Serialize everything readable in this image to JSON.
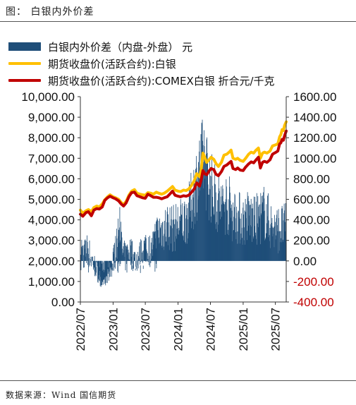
{
  "figure_title": "图： 白银内外价差",
  "source": "数据来源：Wind 国信期货",
  "colors": {
    "spread": "#1f4e79",
    "shfe_close": "#ffc000",
    "comex_close": "#c00000",
    "left_axis_text": "#111111",
    "right_axis_text": "#c00000"
  },
  "chart_data": {
    "type": "bar+line",
    "legend_position": "top-left",
    "grid": false,
    "series": [
      {
        "name": "白银内外价差（内盘-外盘） 元",
        "type": "bar",
        "axis": "left",
        "ylim": [
          0,
          10000
        ],
        "keypoints": [
          [
            "2022-07-01",
            3300
          ],
          [
            "2022-07-20",
            2800
          ],
          [
            "2022-08-10",
            3100
          ],
          [
            "2022-09-01",
            2500
          ],
          [
            "2022-09-25",
            2000
          ],
          [
            "2022-10-15",
            1500
          ],
          [
            "2022-11-05",
            1000
          ],
          [
            "2022-11-25",
            1300
          ],
          [
            "2022-12-10",
            1800
          ],
          [
            "2023-01-01",
            2500
          ],
          [
            "2023-01-20",
            3300
          ],
          [
            "2023-02-05",
            4300
          ],
          [
            "2023-02-20",
            3000
          ],
          [
            "2023-03-10",
            2600
          ],
          [
            "2023-04-01",
            3100
          ],
          [
            "2023-05-01",
            2500
          ],
          [
            "2023-06-01",
            2800
          ],
          [
            "2023-07-01",
            3300
          ],
          [
            "2023-08-01",
            3000
          ],
          [
            "2023-09-01",
            4000
          ],
          [
            "2023-10-01",
            4300
          ],
          [
            "2023-11-01",
            4500
          ],
          [
            "2023-12-01",
            4300
          ],
          [
            "2024-01-01",
            4600
          ],
          [
            "2024-02-01",
            4800
          ],
          [
            "2024-03-01",
            5300
          ],
          [
            "2024-04-01",
            6600
          ],
          [
            "2024-04-20",
            7400
          ],
          [
            "2024-05-10",
            8000
          ],
          [
            "2024-05-25",
            8700
          ],
          [
            "2024-06-10",
            7600
          ],
          [
            "2024-07-01",
            6800
          ],
          [
            "2024-08-01",
            6100
          ],
          [
            "2024-09-01",
            5600
          ],
          [
            "2024-10-01",
            5900
          ],
          [
            "2024-11-01",
            5300
          ],
          [
            "2024-12-01",
            5000
          ],
          [
            "2025-01-01",
            4800
          ],
          [
            "2025-02-01",
            5100
          ],
          [
            "2025-03-01",
            4700
          ],
          [
            "2025-04-01",
            5000
          ],
          [
            "2025-05-01",
            5300
          ],
          [
            "2025-06-01",
            4600
          ],
          [
            "2025-07-01",
            4200
          ],
          [
            "2025-07-31",
            4400
          ]
        ]
      },
      {
        "name": "期货收盘价(活跃合约):白银",
        "type": "line",
        "axis": "right",
        "ylim": [
          -400,
          1600
        ],
        "points": [
          [
            "2022-07-01",
            495
          ],
          [
            "2022-07-15",
            465
          ],
          [
            "2022-08-01",
            488
          ],
          [
            "2022-08-15",
            500
          ],
          [
            "2022-09-01",
            480
          ],
          [
            "2022-09-15",
            520
          ],
          [
            "2022-10-01",
            535
          ],
          [
            "2022-10-15",
            525
          ],
          [
            "2022-11-01",
            555
          ],
          [
            "2022-11-15",
            595
          ],
          [
            "2022-12-01",
            625
          ],
          [
            "2022-12-15",
            645
          ],
          [
            "2023-01-01",
            625
          ],
          [
            "2023-01-15",
            615
          ],
          [
            "2023-02-01",
            600
          ],
          [
            "2023-02-15",
            570
          ],
          [
            "2023-03-01",
            550
          ],
          [
            "2023-03-15",
            580
          ],
          [
            "2023-04-01",
            645
          ],
          [
            "2023-04-15",
            680
          ],
          [
            "2023-05-01",
            695
          ],
          [
            "2023-05-15",
            660
          ],
          [
            "2023-06-01",
            650
          ],
          [
            "2023-06-15",
            645
          ],
          [
            "2023-07-01",
            640
          ],
          [
            "2023-07-15",
            665
          ],
          [
            "2023-08-01",
            660
          ],
          [
            "2023-08-15",
            650
          ],
          [
            "2023-09-01",
            670
          ],
          [
            "2023-09-15",
            660
          ],
          [
            "2023-10-01",
            650
          ],
          [
            "2023-10-15",
            660
          ],
          [
            "2023-11-01",
            680
          ],
          [
            "2023-11-15",
            700
          ],
          [
            "2023-12-01",
            725
          ],
          [
            "2023-12-15",
            690
          ],
          [
            "2024-01-01",
            680
          ],
          [
            "2024-01-15",
            675
          ],
          [
            "2024-02-01",
            690
          ],
          [
            "2024-02-15",
            685
          ],
          [
            "2024-03-01",
            700
          ],
          [
            "2024-03-15",
            730
          ],
          [
            "2024-04-01",
            780
          ],
          [
            "2024-04-15",
            850
          ],
          [
            "2024-05-01",
            820
          ],
          [
            "2024-05-10",
            890
          ],
          [
            "2024-05-20",
            1050
          ],
          [
            "2024-05-30",
            1010
          ],
          [
            "2024-06-10",
            960
          ],
          [
            "2024-06-25",
            990
          ],
          [
            "2024-07-05",
            1010
          ],
          [
            "2024-07-20",
            990
          ],
          [
            "2024-08-01",
            950
          ],
          [
            "2024-08-15",
            920
          ],
          [
            "2024-09-01",
            960
          ],
          [
            "2024-09-15",
            1030
          ],
          [
            "2024-10-01",
            1040
          ],
          [
            "2024-10-15",
            1060
          ],
          [
            "2024-10-25",
            1080
          ],
          [
            "2024-11-05",
            1000
          ],
          [
            "2024-11-20",
            990
          ],
          [
            "2024-12-01",
            1000
          ],
          [
            "2024-12-15",
            980
          ],
          [
            "2025-01-01",
            970
          ],
          [
            "2025-01-15",
            1000
          ],
          [
            "2025-02-01",
            1040
          ],
          [
            "2025-02-15",
            1060
          ],
          [
            "2025-03-01",
            1050
          ],
          [
            "2025-03-15",
            1080
          ],
          [
            "2025-03-28",
            1100
          ],
          [
            "2025-04-08",
            1000
          ],
          [
            "2025-04-20",
            1050
          ],
          [
            "2025-05-01",
            1060
          ],
          [
            "2025-05-15",
            1050
          ],
          [
            "2025-06-01",
            1070
          ],
          [
            "2025-06-15",
            1120
          ],
          [
            "2025-07-01",
            1130
          ],
          [
            "2025-07-15",
            1140
          ],
          [
            "2025-07-25",
            1210
          ],
          [
            "2025-08-01",
            1230
          ],
          [
            "2025-08-08",
            1280
          ],
          [
            "2025-08-15",
            1270
          ],
          [
            "2025-08-22",
            1320
          ],
          [
            "2025-08-31",
            1355
          ]
        ]
      },
      {
        "name": "期货收盘价(活跃合约):COMEX白银 折合元/千克",
        "type": "line",
        "axis": "right",
        "ylim": [
          -400,
          1600
        ],
        "points": [
          [
            "2022-07-01",
            455
          ],
          [
            "2022-07-15",
            435
          ],
          [
            "2022-08-01",
            470
          ],
          [
            "2022-08-15",
            480
          ],
          [
            "2022-09-01",
            440
          ],
          [
            "2022-09-15",
            495
          ],
          [
            "2022-10-01",
            510
          ],
          [
            "2022-10-15",
            505
          ],
          [
            "2022-11-01",
            525
          ],
          [
            "2022-11-15",
            590
          ],
          [
            "2022-12-01",
            615
          ],
          [
            "2022-12-15",
            630
          ],
          [
            "2023-01-01",
            615
          ],
          [
            "2023-01-15",
            605
          ],
          [
            "2023-02-01",
            585
          ],
          [
            "2023-02-15",
            555
          ],
          [
            "2023-03-01",
            535
          ],
          [
            "2023-03-15",
            565
          ],
          [
            "2023-04-01",
            630
          ],
          [
            "2023-04-15",
            665
          ],
          [
            "2023-05-01",
            670
          ],
          [
            "2023-05-15",
            635
          ],
          [
            "2023-06-01",
            625
          ],
          [
            "2023-06-15",
            615
          ],
          [
            "2023-07-01",
            610
          ],
          [
            "2023-07-15",
            650
          ],
          [
            "2023-08-01",
            635
          ],
          [
            "2023-08-15",
            620
          ],
          [
            "2023-09-01",
            620
          ],
          [
            "2023-09-15",
            615
          ],
          [
            "2023-10-01",
            605
          ],
          [
            "2023-10-15",
            615
          ],
          [
            "2023-11-01",
            625
          ],
          [
            "2023-11-15",
            650
          ],
          [
            "2023-12-01",
            680
          ],
          [
            "2023-12-15",
            640
          ],
          [
            "2024-01-01",
            630
          ],
          [
            "2024-01-15",
            625
          ],
          [
            "2024-02-01",
            635
          ],
          [
            "2024-02-15",
            630
          ],
          [
            "2024-03-01",
            640
          ],
          [
            "2024-03-15",
            665
          ],
          [
            "2024-04-01",
            700
          ],
          [
            "2024-04-15",
            760
          ],
          [
            "2024-05-01",
            730
          ],
          [
            "2024-05-10",
            790
          ],
          [
            "2024-05-20",
            880
          ],
          [
            "2024-05-30",
            850
          ],
          [
            "2024-06-10",
            840
          ],
          [
            "2024-06-25",
            880
          ],
          [
            "2024-07-05",
            900
          ],
          [
            "2024-07-20",
            890
          ],
          [
            "2024-08-01",
            845
          ],
          [
            "2024-08-15",
            830
          ],
          [
            "2024-09-01",
            870
          ],
          [
            "2024-09-15",
            920
          ],
          [
            "2024-10-01",
            935
          ],
          [
            "2024-10-15",
            955
          ],
          [
            "2024-10-25",
            970
          ],
          [
            "2024-11-05",
            900
          ],
          [
            "2024-11-20",
            890
          ],
          [
            "2024-12-01",
            905
          ],
          [
            "2024-12-15",
            885
          ],
          [
            "2025-01-01",
            880
          ],
          [
            "2025-01-15",
            915
          ],
          [
            "2025-02-01",
            945
          ],
          [
            "2025-02-15",
            965
          ],
          [
            "2025-03-01",
            955
          ],
          [
            "2025-03-15",
            985
          ],
          [
            "2025-03-28",
            1010
          ],
          [
            "2025-04-08",
            905
          ],
          [
            "2025-04-20",
            960
          ],
          [
            "2025-05-01",
            970
          ],
          [
            "2025-05-15",
            960
          ],
          [
            "2025-06-01",
            985
          ],
          [
            "2025-06-15",
            1040
          ],
          [
            "2025-07-01",
            1055
          ],
          [
            "2025-07-15",
            1070
          ],
          [
            "2025-07-25",
            1140
          ],
          [
            "2025-08-01",
            1150
          ],
          [
            "2025-08-08",
            1185
          ],
          [
            "2025-08-15",
            1175
          ],
          [
            "2025-08-22",
            1220
          ],
          [
            "2025-08-31",
            1265
          ]
        ]
      }
    ],
    "x_tick_labels": [
      "2022/07",
      "2023/01",
      "2023/07",
      "2024/01",
      "2024/07",
      "2025/01",
      "2025/07"
    ],
    "x_tick_dates": [
      "2022-07-01",
      "2023-01-01",
      "2023-07-01",
      "2024-01-01",
      "2024-07-01",
      "2025-01-01",
      "2025-07-01"
    ],
    "x_range": [
      "2022-07-01",
      "2025-08-31"
    ],
    "left_axis": {
      "ylim": [
        0,
        10000
      ],
      "tick_labels": [
        "0.00",
        "1,000.00",
        "2,000.00",
        "3,000.00",
        "4,000.00",
        "5,000.00",
        "6,000.00",
        "7,000.00",
        "8,000.00",
        "9,000.00",
        "10,000.00"
      ]
    },
    "right_axis": {
      "ylim": [
        -400,
        1600
      ],
      "tick_labels": [
        "-400.00",
        "-200.00",
        "0.00",
        "200.00",
        "400.00",
        "600.00",
        "800.00",
        "1000.00",
        "1200.00",
        "1400.00",
        "1600.00"
      ]
    }
  }
}
